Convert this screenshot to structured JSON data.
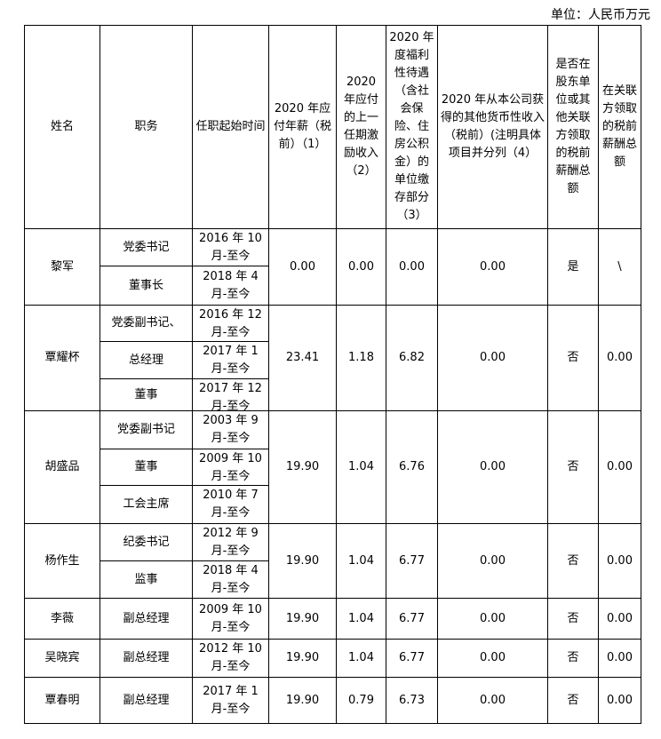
{
  "unit_label": "单位：人民币万元",
  "headers": [
    "姓名",
    "职务",
    "任职起始时间",
    "2020 年应付年薪（税前）（1）",
    "2020 年应付的上一任期激励收入（2）",
    "2020 年度福利性待遇（含社会保险、住房公积金）的单位缴存部分（3）",
    "2020 年从本公司获得的其他货币性收入（税前）(注明具体项目并分列（4）",
    "是否在股东单位或其他关联方领取的税前薪酬总额",
    "在关联方领取的税前薪酬总额"
  ],
  "rows": [
    {
      "name": "黎军",
      "positions": [
        {
          "title": "党委书记",
          "start": "2016 年 10 月-至今"
        },
        {
          "title": "董事长",
          "start": "2018 年 4 月-至今"
        }
      ],
      "salary": "0.00",
      "incentive": "0.00",
      "welfare": "0.00",
      "other": "0.00",
      "related": "是",
      "related_amount": "\\"
    },
    {
      "name": "覃耀杯",
      "positions": [
        {
          "title": "党委副书记、",
          "start": "2016 年 12 月-至今"
        },
        {
          "title": "总经理",
          "start": "2017 年 1 月-至今"
        },
        {
          "title": "董事",
          "start": "2017 年 12 月-至今"
        }
      ],
      "salary": "23.41",
      "incentive": "1.18",
      "welfare": "6.82",
      "other": "0.00",
      "related": "否",
      "related_amount": "0.00"
    },
    {
      "name": "胡盛品",
      "positions": [
        {
          "title": "党委副书记",
          "start": "2003 年 9 月-至今"
        },
        {
          "title": "董事",
          "start": "2009 年 10 月-至今"
        },
        {
          "title": "工会主席",
          "start": "2010 年 7 月-至今"
        }
      ],
      "salary": "19.90",
      "incentive": "1.04",
      "welfare": "6.76",
      "other": "0.00",
      "related": "否",
      "related_amount": "0.00"
    },
    {
      "name": "杨作生",
      "positions": [
        {
          "title": "纪委书记",
          "start": "2012 年 9 月-至今"
        },
        {
          "title": "监事",
          "start": "2018 年 4 月-至今"
        }
      ],
      "salary": "19.90",
      "incentive": "1.04",
      "welfare": "6.77",
      "other": "0.00",
      "related": "否",
      "related_amount": "0.00"
    },
    {
      "name": "李薇",
      "positions": [
        {
          "title": "副总经理",
          "start": "2009 年 10 月-至今"
        }
      ],
      "salary": "19.90",
      "incentive": "1.04",
      "welfare": "6.77",
      "other": "0.00",
      "related": "否",
      "related_amount": "0.00"
    },
    {
      "name": "吴晓宾",
      "positions": [
        {
          "title": "副总经理",
          "start": "2012 年 10 月-至今"
        }
      ],
      "salary": "19.90",
      "incentive": "1.04",
      "welfare": "6.77",
      "other": "0.00",
      "related": "否",
      "related_amount": "0.00"
    },
    {
      "name": "覃春明",
      "positions": [
        {
          "title": "副总经理",
          "start": "2017 年 1 月-至今"
        }
      ],
      "salary": "19.90",
      "incentive": "0.79",
      "welfare": "6.73",
      "other": "0.00",
      "related": "否",
      "related_amount": "0.00"
    }
  ]
}
